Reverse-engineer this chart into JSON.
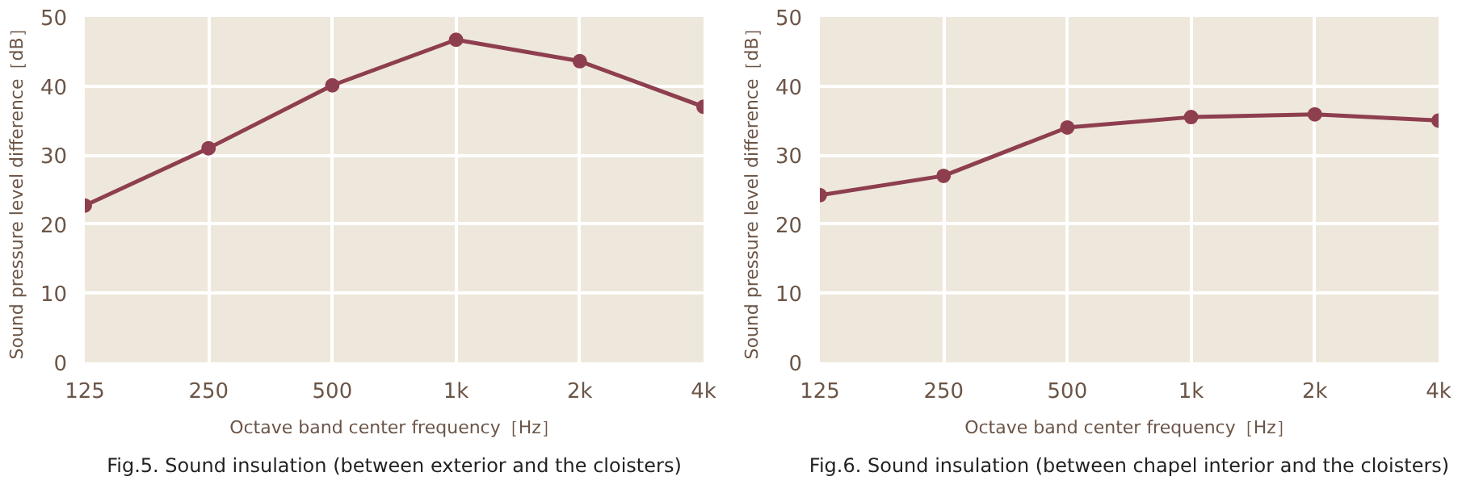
{
  "chart_data": [
    {
      "type": "line",
      "title": "Fig.5. Sound insulation (between exterior and the cloisters)",
      "xlabel": "Octave band center frequency［Hz］",
      "ylabel": "Sound pressure level difference［dB］",
      "categories": [
        "125",
        "250",
        "500",
        "1k",
        "2k",
        "4k"
      ],
      "series": [
        {
          "color": "#8e3f4f",
          "values": [
            22.7,
            31.0,
            40.1,
            46.7,
            43.6,
            37.0
          ]
        }
      ],
      "ylim": [
        0,
        50
      ],
      "yticks": [
        0,
        10,
        20,
        30,
        40,
        50
      ],
      "grid": true,
      "marker": "circle",
      "line_style": "solid"
    },
    {
      "type": "line",
      "title": "Fig.6. Sound insulation (between chapel interior and the cloisters)",
      "xlabel": "Octave band center frequency［Hz］",
      "ylabel": "Sound pressure level difference［dB］",
      "categories": [
        "125",
        "250",
        "500",
        "1k",
        "2k",
        "4k"
      ],
      "series": [
        {
          "color": "#8e3f4f",
          "values": [
            24.2,
            27.0,
            34.0,
            35.5,
            35.9,
            35.0
          ]
        }
      ],
      "ylim": [
        0,
        50
      ],
      "yticks": [
        0,
        10,
        20,
        30,
        40,
        50
      ],
      "grid": true,
      "marker": "circle",
      "line_style": "solid"
    }
  ]
}
